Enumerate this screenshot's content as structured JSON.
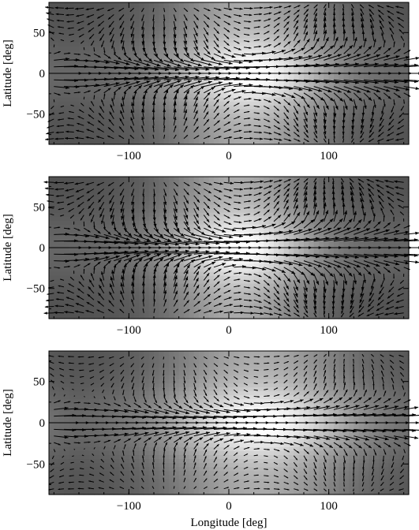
{
  "chart_data": [
    {
      "type": "heatmap",
      "overlay": "vector-field",
      "colormap": "grayscale",
      "xlabel": "",
      "ylabel": "Latitude [deg]",
      "xlim": [
        -180,
        180
      ],
      "ylim": [
        -87,
        87
      ],
      "xticks": [
        -100,
        0,
        100
      ],
      "xtick_labels": [
        "−100",
        "0",
        "100"
      ],
      "yticks": [
        50,
        0,
        -50
      ],
      "ytick_labels": [
        "50",
        "0",
        "−50"
      ],
      "hotspot_lon": 20,
      "hotspot_width_deg": 55,
      "jet_speed": 1.0,
      "eddy_speed": 0.45
    },
    {
      "type": "heatmap",
      "overlay": "vector-field",
      "colormap": "grayscale",
      "xlabel": "",
      "ylabel": "Latitude [deg]",
      "xlim": [
        -180,
        180
      ],
      "ylim": [
        -87,
        87
      ],
      "xticks": [
        -100,
        0,
        100
      ],
      "xtick_labels": [
        "−100",
        "0",
        "100"
      ],
      "yticks": [
        50,
        0,
        -50
      ],
      "ytick_labels": [
        "50",
        "0",
        "−50"
      ],
      "hotspot_lon": 10,
      "hotspot_width_deg": 50,
      "jet_speed": 1.0,
      "eddy_speed": 0.5
    },
    {
      "type": "heatmap",
      "overlay": "vector-field",
      "colormap": "grayscale",
      "xlabel": "Longitude [deg]",
      "ylabel": "Latitude [deg]",
      "xlim": [
        -180,
        180
      ],
      "ylim": [
        -87,
        87
      ],
      "xticks": [
        -100,
        0,
        100
      ],
      "xtick_labels": [
        "−100",
        "0",
        "100"
      ],
      "yticks": [
        50,
        0,
        -50
      ],
      "ytick_labels": [
        "50",
        "0",
        "−50"
      ],
      "hotspot_lon": 30,
      "hotspot_width_deg": 65,
      "jet_speed": 0.9,
      "eddy_speed": 0.3
    }
  ]
}
